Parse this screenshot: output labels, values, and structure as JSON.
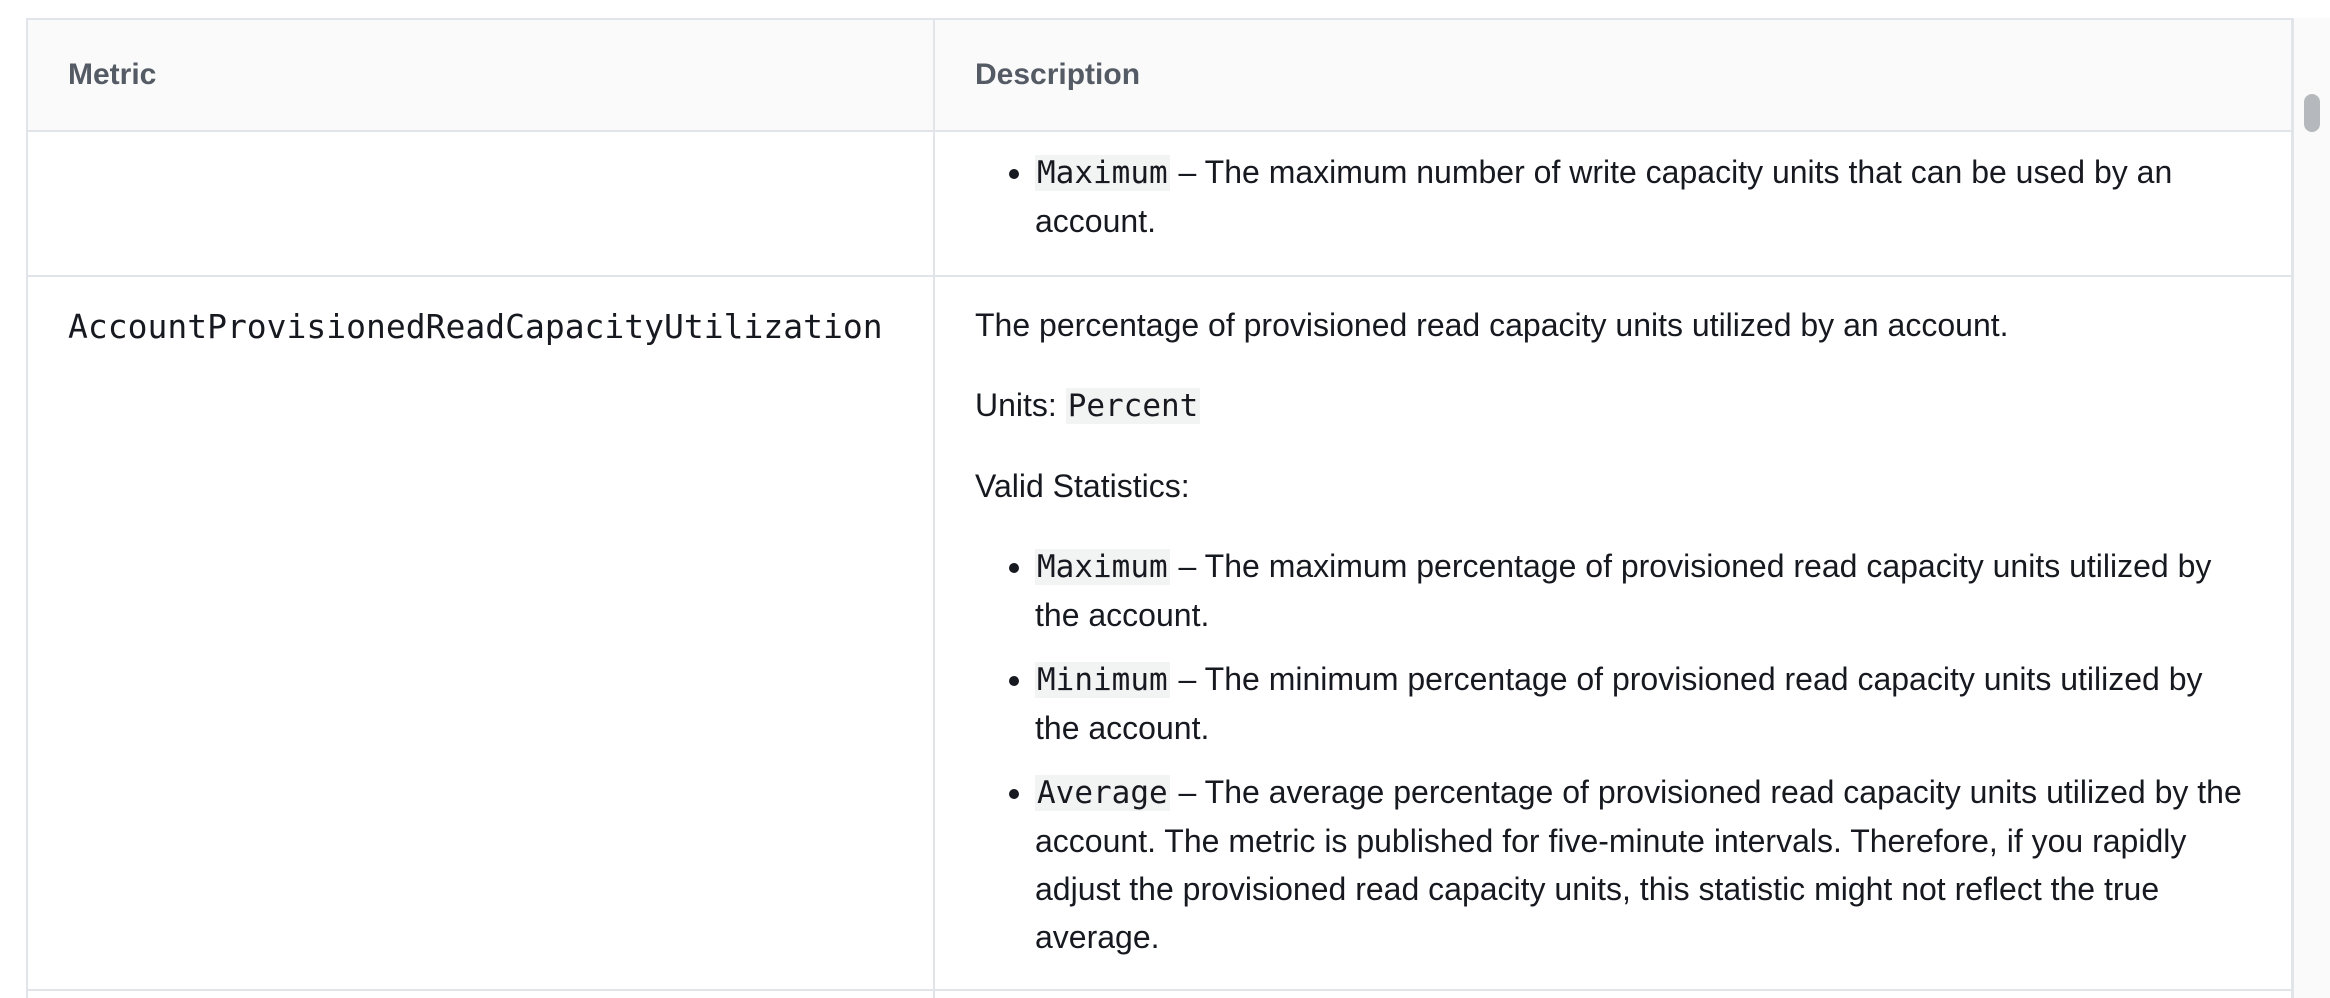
{
  "table": {
    "headers": {
      "metric": "Metric",
      "description": "Description"
    },
    "continued_row": {
      "items": [
        {
          "code": "Maximum",
          "text": " – The maximum number of write capacity units that can be used by an account."
        }
      ]
    },
    "row": {
      "metric": "AccountProvisionedReadCapacityUtilization",
      "summary": "The percentage of provisioned read capacity units utilized by an account.",
      "units_label": "Units: ",
      "units_value": "Percent",
      "valid_statistics_label": "Valid Statistics:",
      "items": [
        {
          "code": "Maximum",
          "text": " – The maximum percentage of provisioned read capacity units utilized by the account."
        },
        {
          "code": "Minimum",
          "text": " – The minimum percentage of provisioned read capacity units utilized by the account."
        },
        {
          "code": "Average",
          "text": " – The average percentage of provisioned read capacity units utilized by the account. The metric is published for five-minute intervals. Therefore, if you rapidly adjust the provisioned read capacity units, this statistic might not reflect the true average."
        }
      ]
    }
  }
}
